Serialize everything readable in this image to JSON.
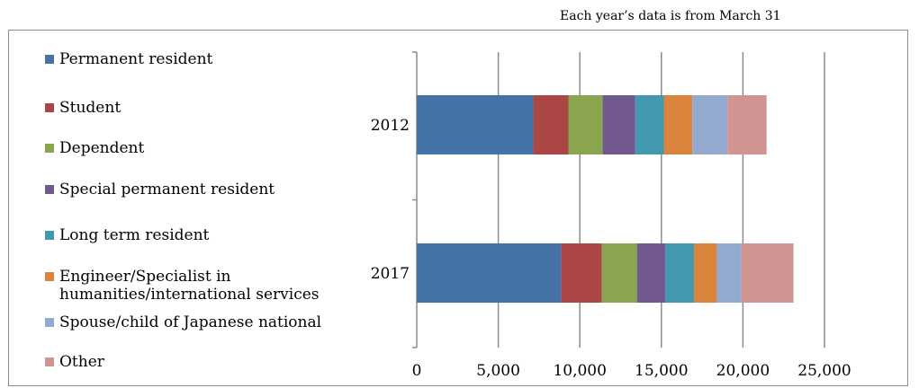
{
  "note": "Each year’s data is from March 31",
  "chart_data": {
    "type": "bar",
    "orientation": "horizontal",
    "stacked": true,
    "title": "",
    "xlabel": "",
    "ylabel": "",
    "xlim": [
      0,
      25000
    ],
    "xticks": [
      0,
      5000,
      10000,
      15000,
      20000,
      25000
    ],
    "xtick_labels": [
      "0",
      "5,000",
      "10,000",
      "15,000",
      "20,000",
      "25,000"
    ],
    "grid": "vertical",
    "legend_position": "left",
    "categories": [
      "2012",
      "2017"
    ],
    "series": [
      {
        "name": "Permanent resident",
        "color": "#4572a7",
        "values": [
          7150,
          8850
        ]
      },
      {
        "name": "Student",
        "color": "#aa4643",
        "values": [
          2150,
          2500
        ]
      },
      {
        "name": "Dependent",
        "color": "#89a54e",
        "values": [
          2100,
          2150
        ]
      },
      {
        "name": "Special permanent resident",
        "color": "#71588f",
        "values": [
          2000,
          1750
        ]
      },
      {
        "name": "Long term resident",
        "color": "#4198af",
        "values": [
          1750,
          1750
        ]
      },
      {
        "name": "Engineer/Specialist in humanities/international services",
        "color": "#db843d",
        "values": [
          1750,
          1400
        ]
      },
      {
        "name": "Spouse/child of Japanese national",
        "color": "#93a9cf",
        "values": [
          2150,
          1500
        ]
      },
      {
        "name": "Other",
        "color": "#d09493",
        "values": [
          2400,
          3200
        ]
      }
    ]
  }
}
